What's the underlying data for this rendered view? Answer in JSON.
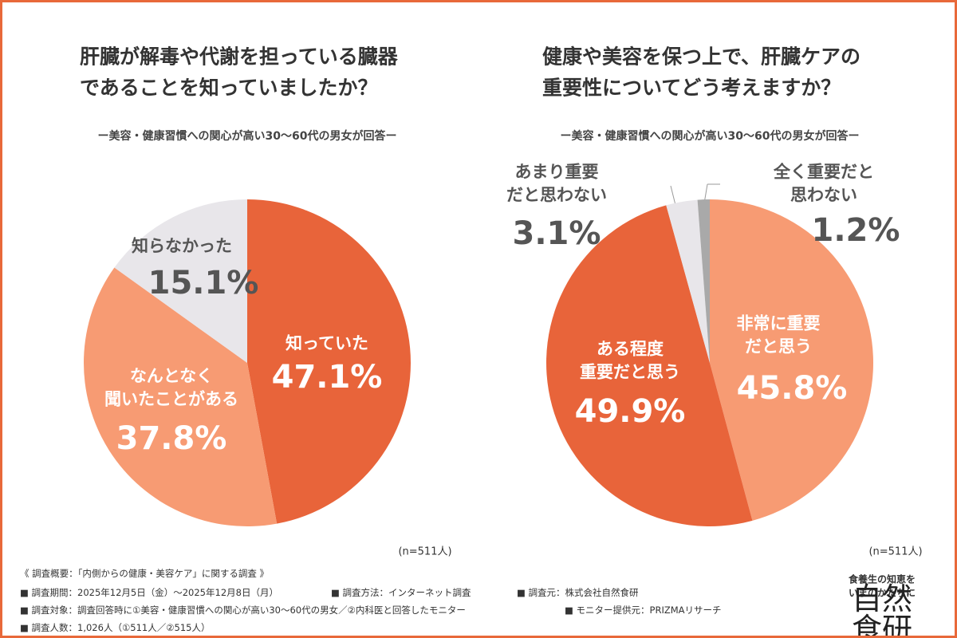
{
  "chart_data": [
    {
      "type": "pie",
      "title": "肝臓が解毒や代謝を担っている臓器\nであることを知っていましたか？",
      "subtitle": "ー美容・健康習慣への関心が高い30～60代の男女が回答ー",
      "categories": [
        "知っていた",
        "なんとなく\n聞いたことがある",
        "知らなかった"
      ],
      "values": [
        47.1,
        37.8,
        15.1
      ],
      "value_labels": [
        "47.1%",
        "37.8%",
        "15.1%"
      ],
      "colors": [
        "#e8643a",
        "#f79b73",
        "#e8e6ea"
      ],
      "note": "(n=511人)"
    },
    {
      "type": "pie",
      "title": "健康や美容を保つ上で、肝臓ケアの\n重要性についてどう考えますか？",
      "subtitle": "ー美容・健康習慣への関心が高い30～60代の男女が回答ー",
      "categories": [
        "非常に重要\nだと思う",
        "ある程度\n重要だと思う",
        "あまり重要\nだと思わない",
        "全く重要だと\n思わない"
      ],
      "values": [
        45.8,
        49.9,
        3.1,
        1.2
      ],
      "value_labels": [
        "45.8%",
        "49.9%",
        "3.1%",
        "1.2%"
      ],
      "colors": [
        "#f79b73",
        "#e8643a",
        "#e8e6ea",
        "#a9a9a9"
      ],
      "note": "(n=511人)"
    }
  ],
  "footer": {
    "heading": "《 調査概要：「内側からの健康・美容ケア」に関する調査 》",
    "rows": [
      [
        "■ 調査期間：2025年12月5日（金）～2025年12月8日（月）",
        "■ 調査方法：インターネット調査",
        "■ 調査元：株式会社自然食研"
      ],
      [
        "■ 調査対象：調査回答時に①美容・健康習慣への関心が高い30～60代の男女／②内科医と回答したモニター",
        "■ モニター提供元：PRIZMAリサーチ"
      ],
      [
        "■ 調査人数：1,026人（①511人／②515人）"
      ]
    ],
    "tagline": "食養生の知恵をいまのかたちに",
    "brand": "自然食研"
  }
}
